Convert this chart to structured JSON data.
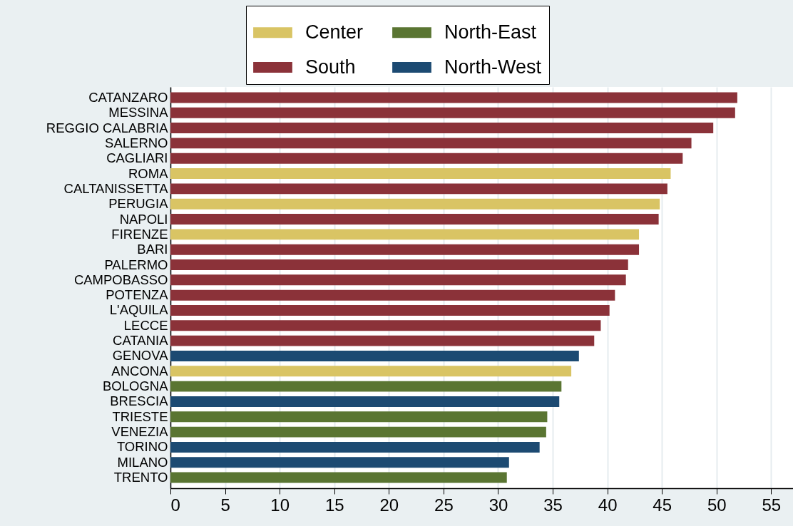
{
  "chart_data": {
    "type": "bar",
    "orientation": "horizontal",
    "categories": [
      "CATANZARO",
      "MESSINA",
      "REGGIO CALABRIA",
      "SALERNO",
      "CAGLIARI",
      "ROMA",
      "CALTANISSETTA",
      "PERUGIA",
      "NAPOLI",
      "FIRENZE",
      "BARI",
      "PALERMO",
      "CAMPOBASSO",
      "POTENZA",
      "L'AQUILA",
      "LECCE",
      "CATANIA",
      "GENOVA",
      "ANCONA",
      "BOLOGNA",
      "BRESCIA",
      "TRIESTE",
      "VENEZIA",
      "TORINO",
      "MILANO",
      "TRENTO"
    ],
    "series": [
      {
        "name": "Center",
        "color": "#d9c464",
        "values": [
          null,
          null,
          null,
          null,
          null,
          45.8,
          null,
          44.8,
          null,
          42.9,
          null,
          null,
          null,
          null,
          null,
          null,
          null,
          null,
          36.7,
          null,
          null,
          null,
          null,
          null,
          null,
          null
        ]
      },
      {
        "name": "South",
        "color": "#8b3239",
        "values": [
          51.9,
          51.7,
          49.7,
          47.7,
          46.9,
          null,
          45.5,
          null,
          44.7,
          null,
          42.9,
          41.9,
          41.7,
          40.7,
          40.2,
          39.4,
          38.8,
          null,
          null,
          null,
          null,
          null,
          null,
          null,
          null,
          null
        ]
      },
      {
        "name": "North-East",
        "color": "#5a7532",
        "values": [
          null,
          null,
          null,
          null,
          null,
          null,
          null,
          null,
          null,
          null,
          null,
          null,
          null,
          null,
          null,
          null,
          null,
          null,
          null,
          35.8,
          null,
          34.5,
          34.4,
          null,
          null,
          30.8
        ]
      },
      {
        "name": "North-West",
        "color": "#1c4a72",
        "values": [
          null,
          null,
          null,
          null,
          null,
          null,
          null,
          null,
          null,
          null,
          null,
          null,
          null,
          null,
          null,
          null,
          null,
          37.4,
          null,
          null,
          35.6,
          null,
          null,
          33.8,
          31.0,
          null
        ]
      }
    ],
    "xlim": [
      0,
      57
    ],
    "xticks": [
      0,
      5,
      10,
      15,
      20,
      25,
      30,
      35,
      40,
      45,
      50,
      55
    ],
    "grid": "x",
    "legend": "top"
  }
}
